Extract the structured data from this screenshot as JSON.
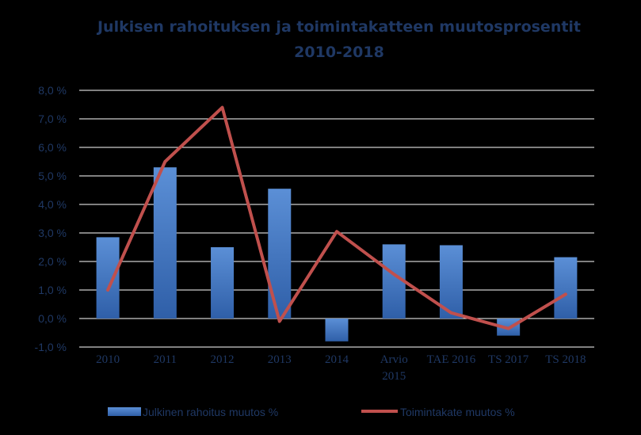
{
  "chart_data": {
    "type": "bar+line",
    "title_lines": [
      "Julkisen rahoituksen ja toimintakatteen muutosprosentit",
      "2010-2018"
    ],
    "categories": [
      [
        "2010"
      ],
      [
        "2011"
      ],
      [
        "2012"
      ],
      [
        "2013"
      ],
      [
        "2014"
      ],
      [
        "Arvio",
        "2015"
      ],
      [
        "TAE 2016"
      ],
      [
        "TS 2017"
      ],
      [
        "TS 2018"
      ]
    ],
    "y_ticks": [
      "8,0 %",
      "7,0 %",
      "6,0 %",
      "5,0 %",
      "4,0 %",
      "3,0 %",
      "2,0 %",
      "1,0 %",
      "0,0 %",
      "-1,0 %"
    ],
    "ylim": [
      -1,
      8
    ],
    "grid": true,
    "legend_position": "bottom",
    "series": [
      {
        "name": "Julkinen rahoitus muutos %",
        "kind": "bar",
        "color": "#4A7EC7",
        "values": [
          2.85,
          5.3,
          2.5,
          4.55,
          -0.8,
          2.6,
          2.57,
          -0.6,
          2.15
        ]
      },
      {
        "name": "Toimintakate muutos %",
        "kind": "line",
        "color": "#C0504D",
        "values": [
          1.0,
          5.5,
          7.4,
          -0.1,
          3.05,
          1.55,
          0.2,
          -0.35,
          0.85
        ]
      }
    ]
  }
}
